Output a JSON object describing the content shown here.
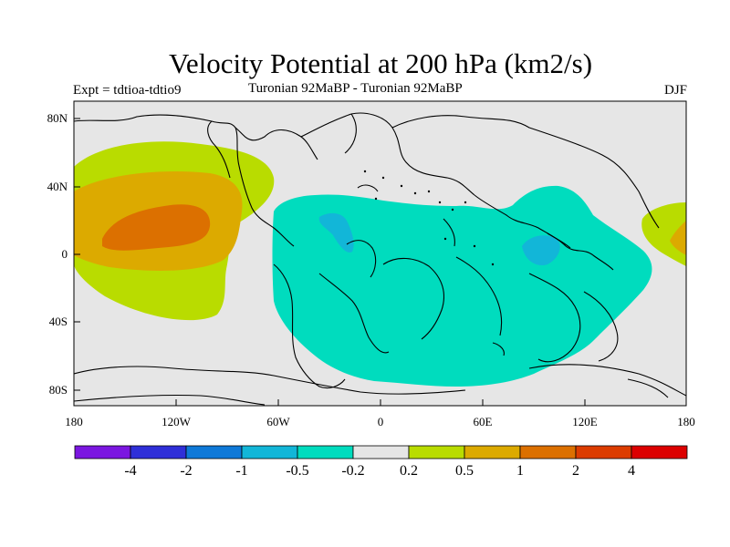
{
  "title": "Velocity Potential at 200 hPa (km2/s)",
  "subtitle_left": "Expt = tdtioa-tdtio9",
  "subtitle_center": "Turonian  92MaBP - Turonian  92MaBP",
  "subtitle_right": "DJF",
  "lat_labels": [
    "80N",
    "40N",
    "0",
    "40S",
    "80S"
  ],
  "lon_labels": [
    "180",
    "120W",
    "60W",
    "0",
    "60E",
    "120E",
    "180"
  ],
  "colorbar": {
    "colors": [
      "#7b16e0",
      "#2f2fd8",
      "#0f79d8",
      "#12b6d8",
      "#00dcbe",
      "#e6e6e6",
      "#b9dc00",
      "#dcaa00",
      "#dc7000",
      "#dc3c00",
      "#dc0000"
    ],
    "labels": [
      "-4",
      "-2",
      "-1",
      "-0.5",
      "-0.2",
      "0.2",
      "0.5",
      "1",
      "2",
      "4"
    ]
  },
  "map_colors": {
    "background": "#e6e6e6",
    "neg_02": "#00dcbe",
    "neg_05": "#12b6d8",
    "pos_02": "#b9dc00",
    "pos_05": "#dcaa00",
    "pos_1": "#dc7000"
  }
}
